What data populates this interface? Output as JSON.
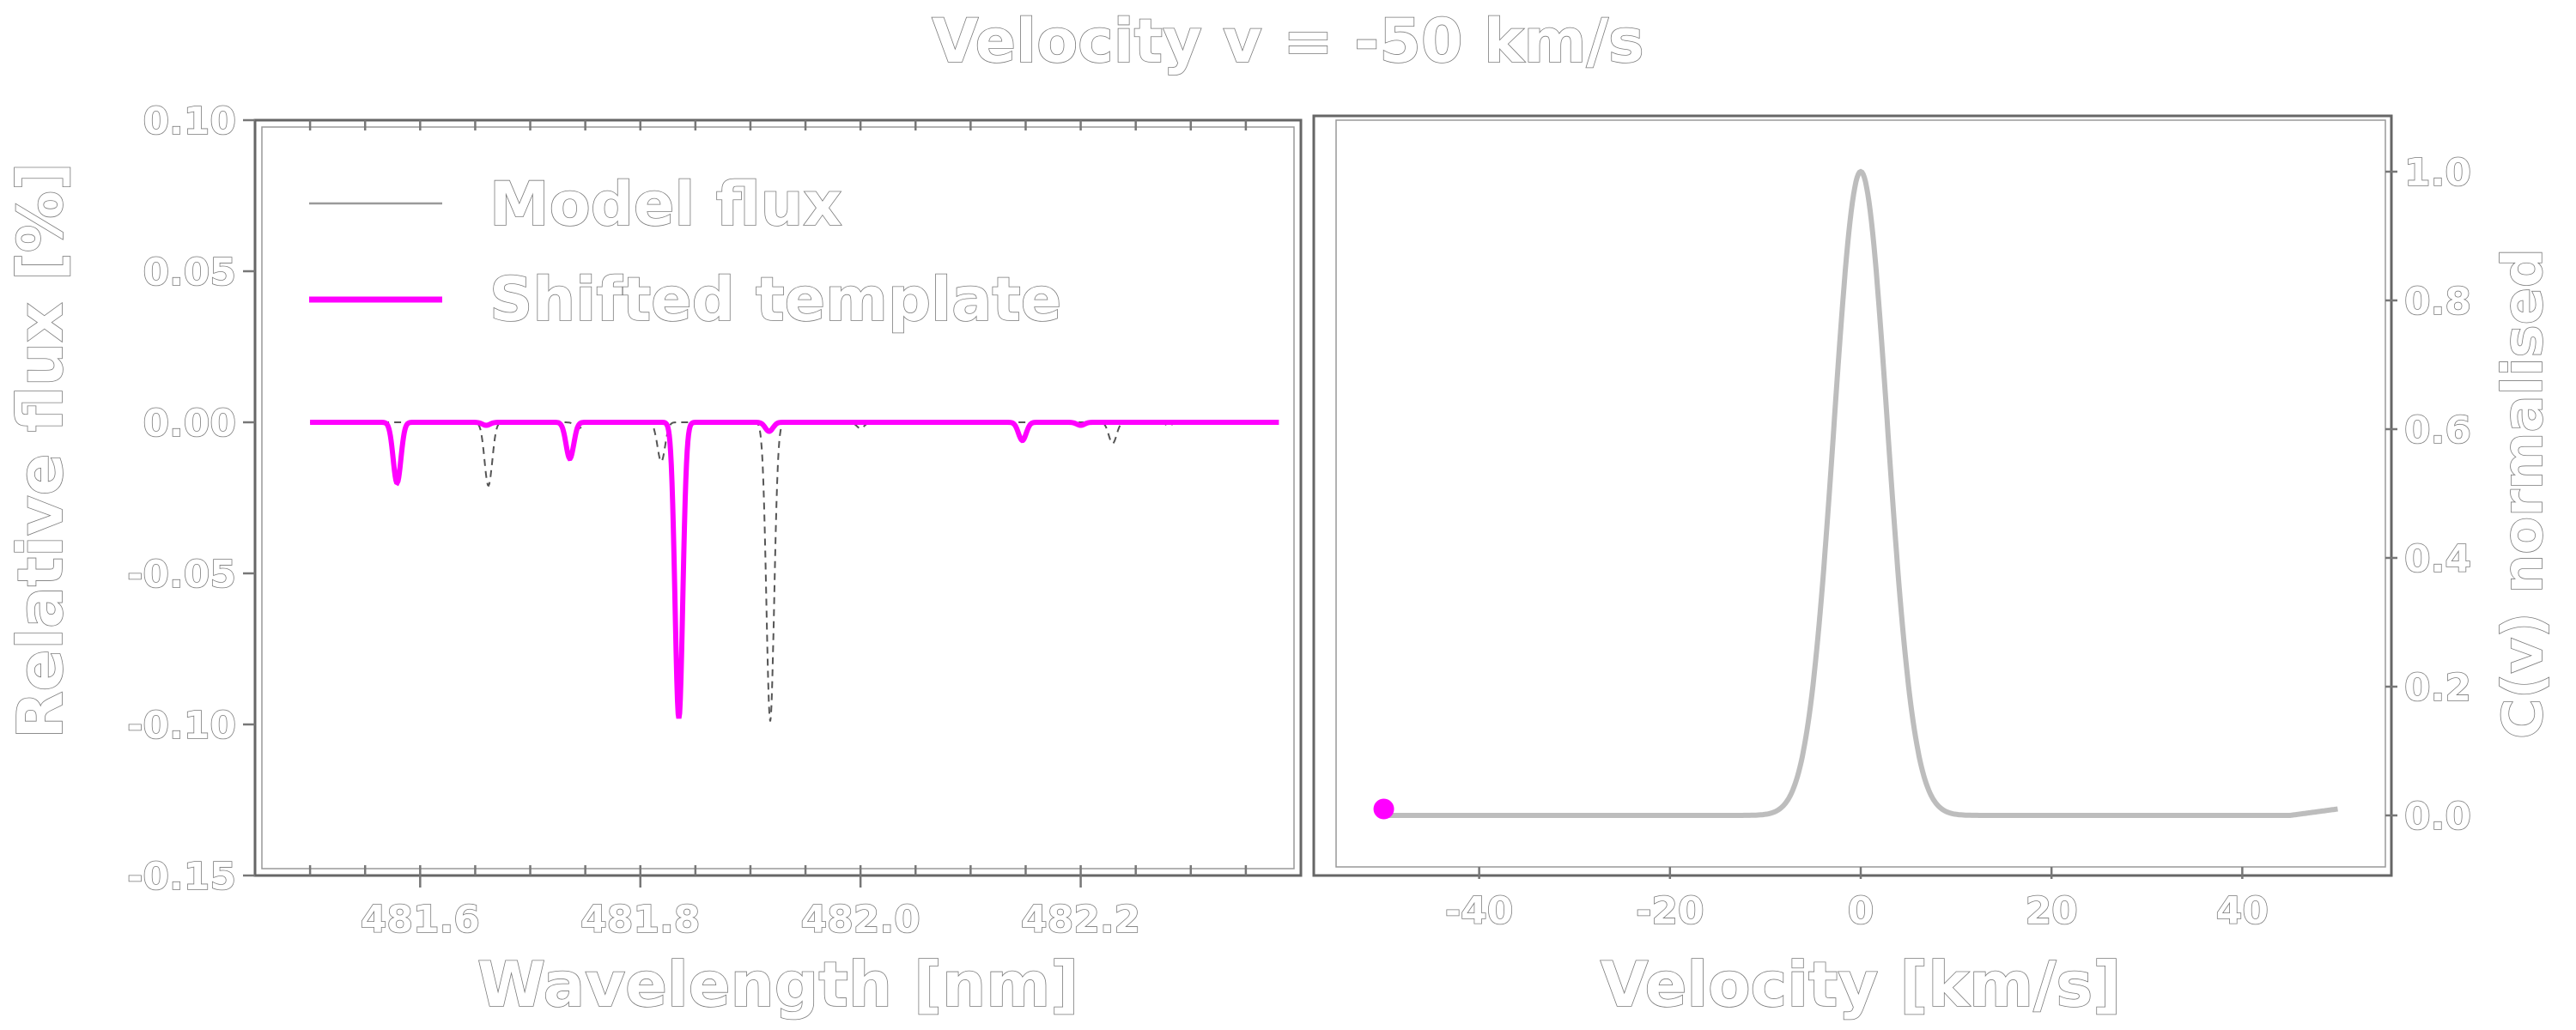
{
  "title": "Velocity v = -50 km/s",
  "colors": {
    "template": "#ff00ff",
    "model": "#555555",
    "ccf": "#bdbdbd",
    "marker": "#ff00ff"
  },
  "chart_data": [
    {
      "type": "line",
      "xlabel": "Wavelength [nm]",
      "ylabel": "Relative flux [%]",
      "xlim": [
        481.45,
        482.4
      ],
      "ylim": [
        -0.15,
        0.1
      ],
      "xticks": [
        "481.6",
        "481.8",
        "482.0",
        "482.2"
      ],
      "yticks": [
        "0.10",
        "0.05",
        "0.00",
        "-0.05",
        "-0.10",
        "-0.15"
      ],
      "legend": {
        "placement": "top-left",
        "entries": [
          "Model flux",
          "Shifted template"
        ]
      },
      "x_range": [
        481.5,
        482.38
      ],
      "series": [
        {
          "name": "Model flux",
          "style": "dashed",
          "lines": [
            {
              "center": 481.662,
              "depth": -0.021
            },
            {
              "center": 481.744,
              "depth": -0.002
            },
            {
              "center": 481.819,
              "depth": -0.013
            },
            {
              "center": 481.918,
              "depth": -0.099
            },
            {
              "center": 482.0,
              "depth": -0.002
            },
            {
              "center": 482.229,
              "depth": -0.007
            },
            {
              "center": 482.28,
              "depth": -0.001
            }
          ]
        },
        {
          "name": "Shifted template",
          "style": "solid",
          "lines": [
            {
              "center": 481.579,
              "depth": -0.02
            },
            {
              "center": 481.66,
              "depth": -0.001
            },
            {
              "center": 481.736,
              "depth": -0.012
            },
            {
              "center": 481.835,
              "depth": -0.098
            },
            {
              "center": 481.917,
              "depth": -0.003
            },
            {
              "center": 482.147,
              "depth": -0.006
            },
            {
              "center": 482.2,
              "depth": -0.001
            }
          ]
        }
      ]
    },
    {
      "type": "line",
      "xlabel": "Velocity [km/s]",
      "ylabel": "C(v) normalised",
      "y_axis_position": "right",
      "xlim": [
        -55,
        55
      ],
      "ylim": [
        -0.08,
        1.08
      ],
      "xticks": [
        "-40",
        "-20",
        "0",
        "20",
        "40"
      ],
      "yticks": [
        "1.0",
        "0.8",
        "0.6",
        "0.4",
        "0.2",
        "0.0"
      ],
      "series": [
        {
          "style": "solid",
          "peak": {
            "x": 0,
            "y": 1.0
          },
          "x_range": [
            -50,
            50
          ],
          "baseline": 0.0,
          "sigma": 2.8
        }
      ],
      "marker": {
        "x": -50,
        "y": 0.01
      }
    }
  ]
}
